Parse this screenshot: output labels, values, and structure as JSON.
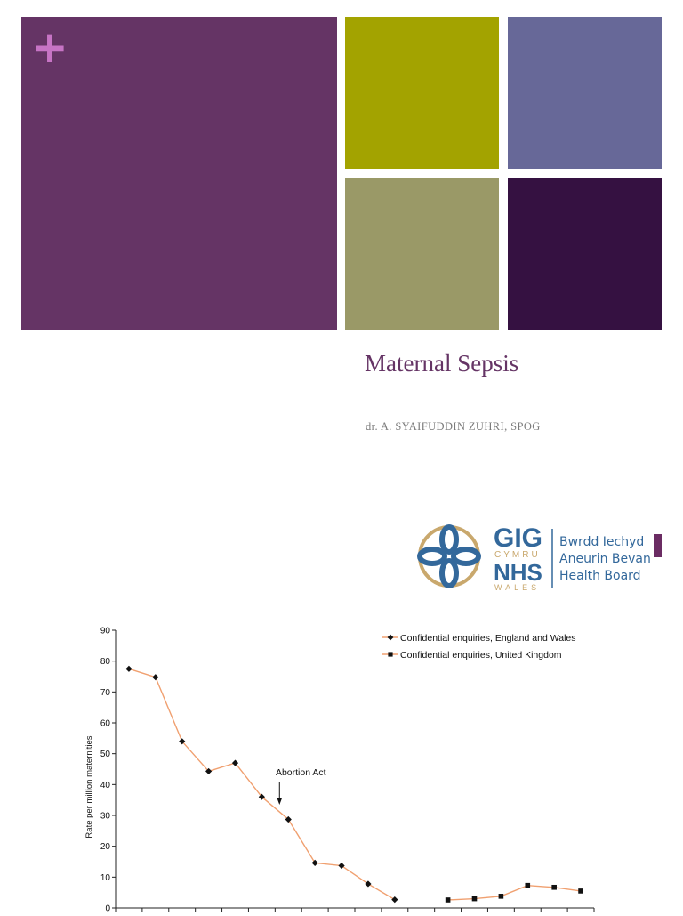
{
  "colors": {
    "main_tile": "#653465",
    "olive_tile": "#a3a300",
    "blue_tile": "#676898",
    "sage_tile": "#9a9967",
    "dark_tile": "#351141",
    "title": "#653465",
    "logo_blue": "#33689b",
    "logo_gold": "#c9a86d",
    "accent_bar": "#6b2c63",
    "series_line": "#f0a070",
    "marker": "#111111"
  },
  "decor": {
    "plus": "+"
  },
  "slide": {
    "title": "Maternal Sepsis",
    "author": "dr. A. SYAIFUDDIN ZUHRI, SPOG"
  },
  "logo": {
    "gig": "GIG",
    "cymru": "CYMRU",
    "nhs": "NHS",
    "wales": "WALES",
    "board_lines": [
      "Bwrdd Iechyd",
      "Aneurin Bevan",
      "Health Board"
    ]
  },
  "chart_data": {
    "type": "line",
    "ylabel": "Rate per million maternities",
    "ylim": [
      0,
      90
    ],
    "yticks": [
      0,
      10,
      20,
      30,
      40,
      50,
      60,
      70,
      80,
      90
    ],
    "annotation": "Abortion Act",
    "annotation_index": 6,
    "legend_position": "top-right",
    "series": [
      {
        "name": "Confidential enquiries, England and Wales",
        "marker": "diamond",
        "values": [
          77.5,
          74.8,
          54,
          44.3,
          47,
          36,
          28.7,
          14.6,
          13.7,
          7.8,
          2.7
        ]
      },
      {
        "name": "Confidential enquiries, United Kingdom",
        "marker": "square",
        "values": [
          2.6,
          3,
          3.8,
          7.3,
          6.7,
          5.5
        ]
      }
    ]
  }
}
